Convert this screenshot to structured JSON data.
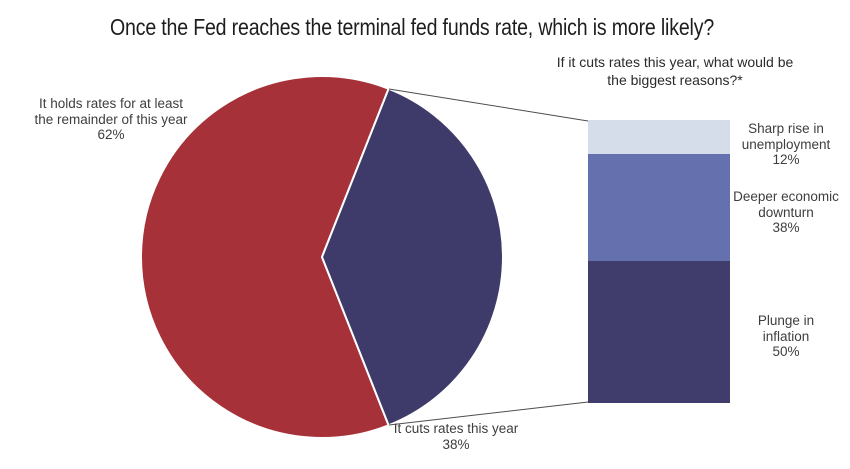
{
  "title": "Once the Fed reaches the terminal fed funds rate, which is more likely?",
  "colors": {
    "pie_hold_red": "#a63138",
    "pie_cut_navy": "#3e3b6b",
    "bar_light_blue": "#d4dde9",
    "bar_medium_blue": "#6471ae",
    "bar_dark_navy": "#403c6b",
    "leader_line": "#4d4d4d",
    "text": "#3e3e3e"
  },
  "chart_data": [
    {
      "type": "pie",
      "title": "Once the Fed reaches the terminal fed funds rate, which is more likely?",
      "slices": [
        {
          "label": "It holds rates for at least the remainder of this year",
          "value": 62,
          "color": "#a63138"
        },
        {
          "label": "It cuts rates this year",
          "value": 38,
          "color": "#3e3b6b"
        }
      ],
      "layout": "38% slice centered on right side; white wedge borders; no legend"
    },
    {
      "type": "bar",
      "stacked": true,
      "title": "If it cuts rates this year, what would be the biggest reasons?*",
      "segments": [
        {
          "label": "Sharp rise in unemployment",
          "value": 12,
          "color": "#d4dde9"
        },
        {
          "label": "Deeper economic downturn",
          "value": 38,
          "color": "#6471ae"
        },
        {
          "label": "Plunge in inflation",
          "value": 50,
          "color": "#403c6b"
        }
      ],
      "layout": "single vertical 100% stacked bar linked to pie 38% slice by leader lines; labels at right"
    }
  ],
  "labels": {
    "pie_hold": {
      "line1": "It holds rates for at least",
      "line2": "the remainder of this year",
      "pct": "62%"
    },
    "pie_cut": {
      "line1": "It cuts rates this year",
      "pct": "38%"
    },
    "bar_title_line1": "If it cuts rates this year, what would be",
    "bar_title_line2": "the biggest reasons?*",
    "bar_labels": [
      {
        "line1": "Sharp rise in",
        "line2": "unemployment",
        "pct": "12%"
      },
      {
        "line1": "Deeper economic",
        "line2": "downturn",
        "pct": "38%"
      },
      {
        "line1": "Plunge in",
        "line2": "inflation",
        "pct": "50%"
      }
    ]
  }
}
